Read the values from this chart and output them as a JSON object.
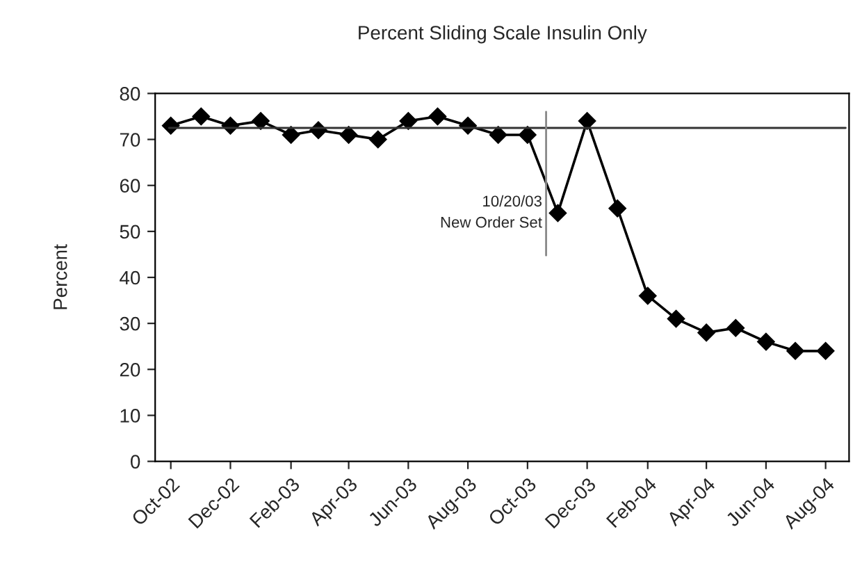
{
  "chart_data": {
    "type": "line",
    "title": "Percent Sliding Scale Insulin Only",
    "ylabel": "Percent",
    "x": [
      "2002-10",
      "2002-11",
      "2002-12",
      "2003-01",
      "2003-02",
      "2003-03",
      "2003-04",
      "2003-05",
      "2003-06",
      "2003-07",
      "2003-08",
      "2003-09",
      "2003-10",
      "2003-11",
      "2003-12",
      "2004-01",
      "2004-02",
      "2004-03",
      "2004-04",
      "2004-05",
      "2004-06",
      "2004-07",
      "2004-08"
    ],
    "series": [
      {
        "color": "#000000",
        "values": [
          73,
          75,
          73,
          74,
          71,
          72,
          71,
          70,
          74,
          75,
          73,
          71,
          71,
          54,
          74,
          55,
          36,
          31,
          28,
          29,
          26,
          24,
          24
        ]
      }
    ],
    "xlim": [
      "2002-09-15",
      "2004-08-25"
    ],
    "xticks": [
      {
        "value": "2002-10",
        "label": "Oct-02"
      },
      {
        "value": "2002-12",
        "label": "Dec-02"
      },
      {
        "value": "2003-02",
        "label": "Feb-03"
      },
      {
        "value": "2003-04",
        "label": "Apr-03"
      },
      {
        "value": "2003-06",
        "label": "Jun-03"
      },
      {
        "value": "2003-08",
        "label": "Aug-03"
      },
      {
        "value": "2003-10",
        "label": "Oct-03"
      },
      {
        "value": "2003-12",
        "label": "Dec-03"
      },
      {
        "value": "2004-02",
        "label": "Feb-04"
      },
      {
        "value": "2004-04",
        "label": "Apr-04"
      },
      {
        "value": "2004-06",
        "label": "Jun-04"
      },
      {
        "value": "2004-08",
        "label": "Aug-04"
      }
    ],
    "ylim": [
      0,
      80
    ],
    "yticks": [
      0,
      10,
      20,
      30,
      40,
      50,
      60,
      70,
      80
    ],
    "ref_lines": [
      {
        "axis": "y",
        "value": 72.5,
        "color": "#333333"
      },
      {
        "axis": "x",
        "value": "2003-10-20",
        "label": "10/20/03\nNew Order Set",
        "color": "#888888"
      }
    ],
    "marker": "diamond",
    "line_style": "solid",
    "grid": false,
    "legend": false
  }
}
